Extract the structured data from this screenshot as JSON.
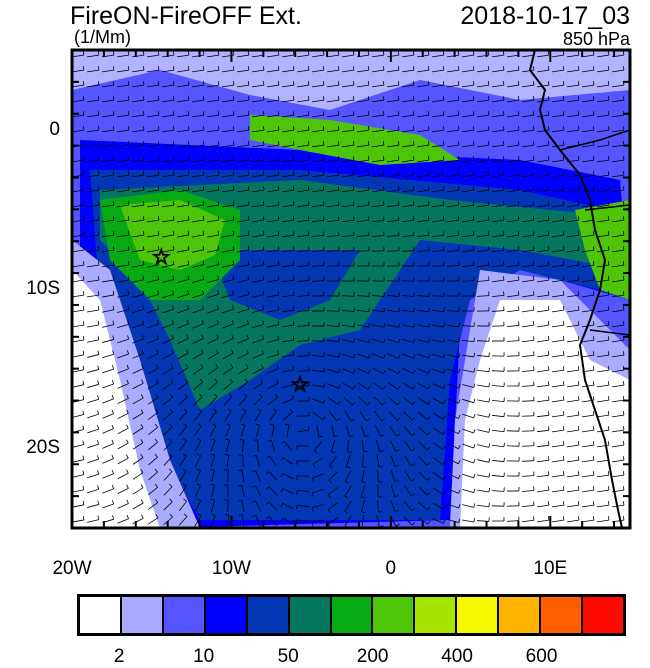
{
  "header": {
    "title": "FireON-FireOFF Ext.",
    "date": "2018-10-17_03",
    "units": "(1/Mm)",
    "level": "850 hPa"
  },
  "map": {
    "lon_range": [
      -20,
      15
    ],
    "lat_range": [
      -25,
      5
    ],
    "x_labels": [
      {
        "lon": -20,
        "text": "20W"
      },
      {
        "lon": -10,
        "text": "10W"
      },
      {
        "lon": 0,
        "text": "0"
      },
      {
        "lon": 10,
        "text": "10E"
      }
    ],
    "y_labels": [
      {
        "lat": 0,
        "text": "0"
      },
      {
        "lat": -10,
        "text": "10S"
      },
      {
        "lat": -20,
        "text": "20S"
      }
    ],
    "markers": [
      {
        "name": "star",
        "lon": -14.4,
        "lat": -8.0
      },
      {
        "name": "star",
        "lon": -5.7,
        "lat": -16.0
      }
    ],
    "anticyclone_center": {
      "lon": -5.5,
      "lat": -19.0
    }
  },
  "colorbar": {
    "colors": [
      "#ffffff",
      "#aaaaff",
      "#5555ff",
      "#0000ff",
      "#0337b5",
      "#06775f",
      "#08aa14",
      "#4fc50a",
      "#a6e500",
      "#f5fa00",
      "#ffb400",
      "#ff5f00",
      "#ff0a00"
    ],
    "labels": [
      {
        "boundary": 1,
        "text": "2"
      },
      {
        "boundary": 3,
        "text": "10"
      },
      {
        "boundary": 5,
        "text": "50"
      },
      {
        "boundary": 7,
        "text": "200"
      },
      {
        "boundary": 9,
        "text": "400"
      },
      {
        "boundary": 11,
        "text": "600"
      }
    ]
  }
}
